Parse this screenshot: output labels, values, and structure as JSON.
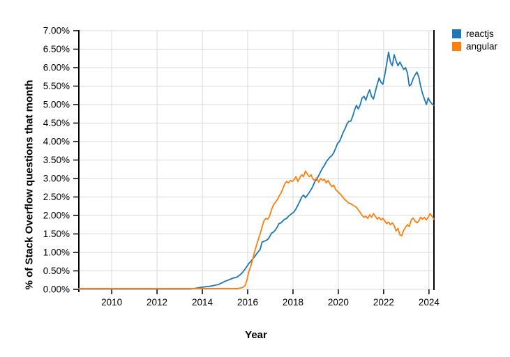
{
  "chart_data": {
    "type": "line",
    "title": "",
    "xlabel": "Year",
    "ylabel": "% of Stack Overflow questions that month",
    "x_range": [
      2008.55,
      2024.22
    ],
    "ylim": [
      0,
      7
    ],
    "grid": true,
    "legend_position": "top-right",
    "x_ticks": [
      2010,
      2012,
      2014,
      2016,
      2018,
      2020,
      2022,
      2024
    ],
    "x_tick_labels": [
      "2010",
      "2012",
      "2014",
      "2016",
      "2018",
      "2020",
      "2022",
      "2024"
    ],
    "y_tick_values": [
      0,
      0.5,
      1,
      1.5,
      2,
      2.5,
      3,
      3.5,
      4,
      4.5,
      5,
      5.5,
      6,
      6.5,
      7
    ],
    "y_tick_labels": [
      "0.00%",
      "0.50%",
      "1.00%",
      "1.50%",
      "2.00%",
      "2.50%",
      "3.00%",
      "3.50%",
      "4.00%",
      "4.50%",
      "5.00%",
      "5.50%",
      "6.00%",
      "6.50%",
      "7.00%"
    ],
    "series": [
      {
        "name": "reactjs",
        "color": "#1f77b4",
        "x_start": 2008.55,
        "x_step": 0.0833333,
        "values": [
          0.01,
          0.01,
          0.01,
          0.01,
          0.01,
          0.01,
          0.01,
          0.01,
          0.01,
          0.01,
          0.01,
          0.01,
          0.01,
          0.01,
          0.01,
          0.01,
          0.01,
          0.01,
          0.01,
          0.01,
          0.01,
          0.01,
          0.01,
          0.01,
          0.01,
          0.01,
          0.01,
          0.01,
          0.01,
          0.01,
          0.01,
          0.01,
          0.01,
          0.01,
          0.01,
          0.01,
          0.01,
          0.01,
          0.01,
          0.01,
          0.01,
          0.01,
          0.01,
          0.01,
          0.01,
          0.01,
          0.01,
          0.01,
          0.01,
          0.01,
          0.01,
          0.01,
          0.01,
          0.01,
          0.01,
          0.01,
          0.01,
          0.01,
          0.01,
          0.01,
          0.02,
          0.02,
          0.03,
          0.04,
          0.05,
          0.06,
          0.06,
          0.07,
          0.08,
          0.08,
          0.09,
          0.1,
          0.11,
          0.12,
          0.13,
          0.16,
          0.18,
          0.21,
          0.23,
          0.25,
          0.27,
          0.29,
          0.31,
          0.32,
          0.34,
          0.38,
          0.42,
          0.48,
          0.55,
          0.62,
          0.7,
          0.75,
          0.82,
          0.88,
          0.95,
          1.02,
          1.08,
          1.28,
          1.3,
          1.32,
          1.35,
          1.42,
          1.52,
          1.55,
          1.6,
          1.68,
          1.78,
          1.8,
          1.85,
          1.9,
          1.92,
          1.98,
          2.02,
          2.06,
          2.1,
          2.18,
          2.28,
          2.38,
          2.5,
          2.55,
          2.48,
          2.55,
          2.62,
          2.7,
          2.8,
          2.92,
          2.98,
          3.08,
          3.18,
          3.28,
          3.35,
          3.45,
          3.52,
          3.58,
          3.62,
          3.7,
          3.82,
          3.95,
          4.0,
          4.12,
          4.25,
          4.35,
          4.48,
          4.55,
          4.55,
          4.68,
          4.85,
          4.98,
          4.88,
          5.0,
          5.18,
          5.22,
          5.12,
          5.28,
          5.4,
          5.22,
          5.15,
          5.35,
          5.55,
          5.72,
          5.6,
          5.55,
          5.8,
          6.1,
          6.42,
          6.15,
          6.05,
          6.35,
          6.18,
          6.05,
          6.15,
          6.05,
          5.95,
          6.0,
          5.85,
          5.5,
          5.55,
          5.7,
          5.8,
          5.88,
          5.75,
          5.5,
          5.3,
          5.15,
          5.0,
          5.18,
          5.08,
          5.02,
          4.98
        ]
      },
      {
        "name": "angular",
        "color": "#ff7f0e",
        "x_start": 2008.55,
        "x_step": 0.0833333,
        "values": [
          0.02,
          0.02,
          0.02,
          0.02,
          0.02,
          0.02,
          0.02,
          0.02,
          0.02,
          0.02,
          0.02,
          0.02,
          0.02,
          0.02,
          0.02,
          0.02,
          0.02,
          0.02,
          0.02,
          0.02,
          0.02,
          0.02,
          0.02,
          0.02,
          0.02,
          0.02,
          0.02,
          0.02,
          0.02,
          0.02,
          0.02,
          0.02,
          0.02,
          0.02,
          0.02,
          0.02,
          0.02,
          0.02,
          0.02,
          0.02,
          0.02,
          0.02,
          0.02,
          0.02,
          0.02,
          0.02,
          0.02,
          0.02,
          0.02,
          0.02,
          0.02,
          0.02,
          0.02,
          0.02,
          0.02,
          0.02,
          0.02,
          0.02,
          0.02,
          0.02,
          0.02,
          0.02,
          0.02,
          0.02,
          0.02,
          0.02,
          0.02,
          0.02,
          0.02,
          0.02,
          0.02,
          0.02,
          0.02,
          0.02,
          0.02,
          0.02,
          0.02,
          0.02,
          0.02,
          0.02,
          0.02,
          0.02,
          0.02,
          0.02,
          0.02,
          0.03,
          0.04,
          0.06,
          0.1,
          0.25,
          0.48,
          0.62,
          0.8,
          1.0,
          1.18,
          1.35,
          1.5,
          1.68,
          1.85,
          1.92,
          1.9,
          1.98,
          2.15,
          2.28,
          2.35,
          2.42,
          2.52,
          2.6,
          2.72,
          2.85,
          2.92,
          2.88,
          2.95,
          2.92,
          2.97,
          3.05,
          2.92,
          3.02,
          3.1,
          3.05,
          3.2,
          3.12,
          3.05,
          3.1,
          2.98,
          2.95,
          3.02,
          2.9,
          3.0,
          2.95,
          2.98,
          2.88,
          2.95,
          2.85,
          2.78,
          2.82,
          2.7,
          2.65,
          2.6,
          2.55,
          2.48,
          2.42,
          2.38,
          2.33,
          2.32,
          2.28,
          2.25,
          2.22,
          2.15,
          2.08,
          2.0,
          1.95,
          1.98,
          1.92,
          2.02,
          1.95,
          2.05,
          1.98,
          1.9,
          1.95,
          1.88,
          1.92,
          1.85,
          1.78,
          1.82,
          1.75,
          1.8,
          1.72,
          1.58,
          1.65,
          1.48,
          1.45,
          1.6,
          1.68,
          1.75,
          1.7,
          1.88,
          1.93,
          1.85,
          1.8,
          1.85,
          1.95,
          1.9,
          1.95,
          1.88,
          1.95,
          2.05,
          1.98,
          1.9
        ]
      }
    ]
  },
  "colors": {
    "grid": "#d9d9d9",
    "axis": "#000000",
    "text": "#000000",
    "background": "#ffffff"
  }
}
